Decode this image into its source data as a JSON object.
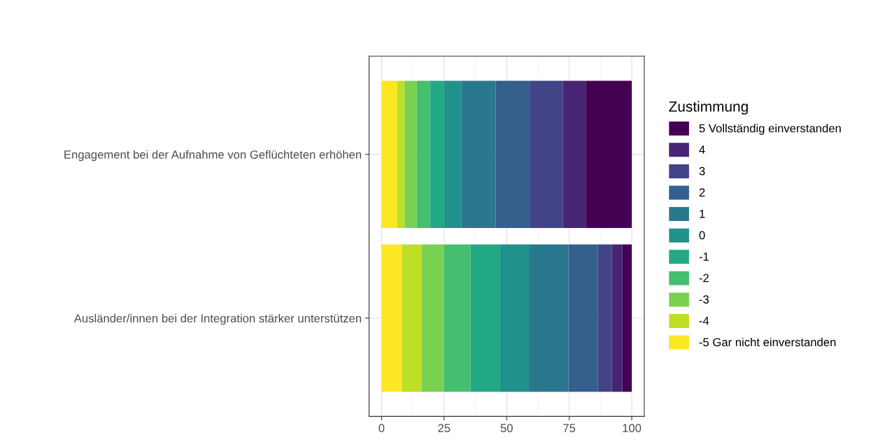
{
  "chart_data": {
    "type": "bar",
    "orientation": "horizontal",
    "stacked": true,
    "categories": [
      "Engagement bei der Aufnahme von Geflüchteten erhöhen",
      "Ausländer/innen bei der Integration stärker unterstützen"
    ],
    "series": [
      {
        "name": "-5 Gar nicht einverstanden",
        "color": "#fde725",
        "values": [
          6.3,
          8.2
        ]
      },
      {
        "name": "-4",
        "color": "#bddf26",
        "values": [
          2.9,
          7.8
        ]
      },
      {
        "name": "-3",
        "color": "#7ad151",
        "values": [
          4.9,
          8.9
        ]
      },
      {
        "name": "-2",
        "color": "#44bf70",
        "values": [
          5.4,
          10.7
        ]
      },
      {
        "name": "-1",
        "color": "#22a884",
        "values": [
          5.5,
          11.8
        ]
      },
      {
        "name": "0",
        "color": "#21918c",
        "values": [
          7.0,
          11.5
        ]
      },
      {
        "name": "1",
        "color": "#2a788e",
        "values": [
          13.6,
          15.8
        ]
      },
      {
        "name": "2",
        "color": "#355f8d",
        "values": [
          13.6,
          11.8
        ]
      },
      {
        "name": "3",
        "color": "#414487",
        "values": [
          13.2,
          5.6
        ]
      },
      {
        "name": "4",
        "color": "#482475",
        "values": [
          9.2,
          4.1
        ]
      },
      {
        "name": "5 Vollständig einverstanden",
        "color": "#440154",
        "values": [
          18.4,
          3.8
        ]
      }
    ],
    "xlim": [
      -5,
      105
    ],
    "xticks": [
      0,
      25,
      50,
      75,
      100
    ],
    "legend_title": "Zustimmung",
    "legend": "right",
    "grid": true
  }
}
